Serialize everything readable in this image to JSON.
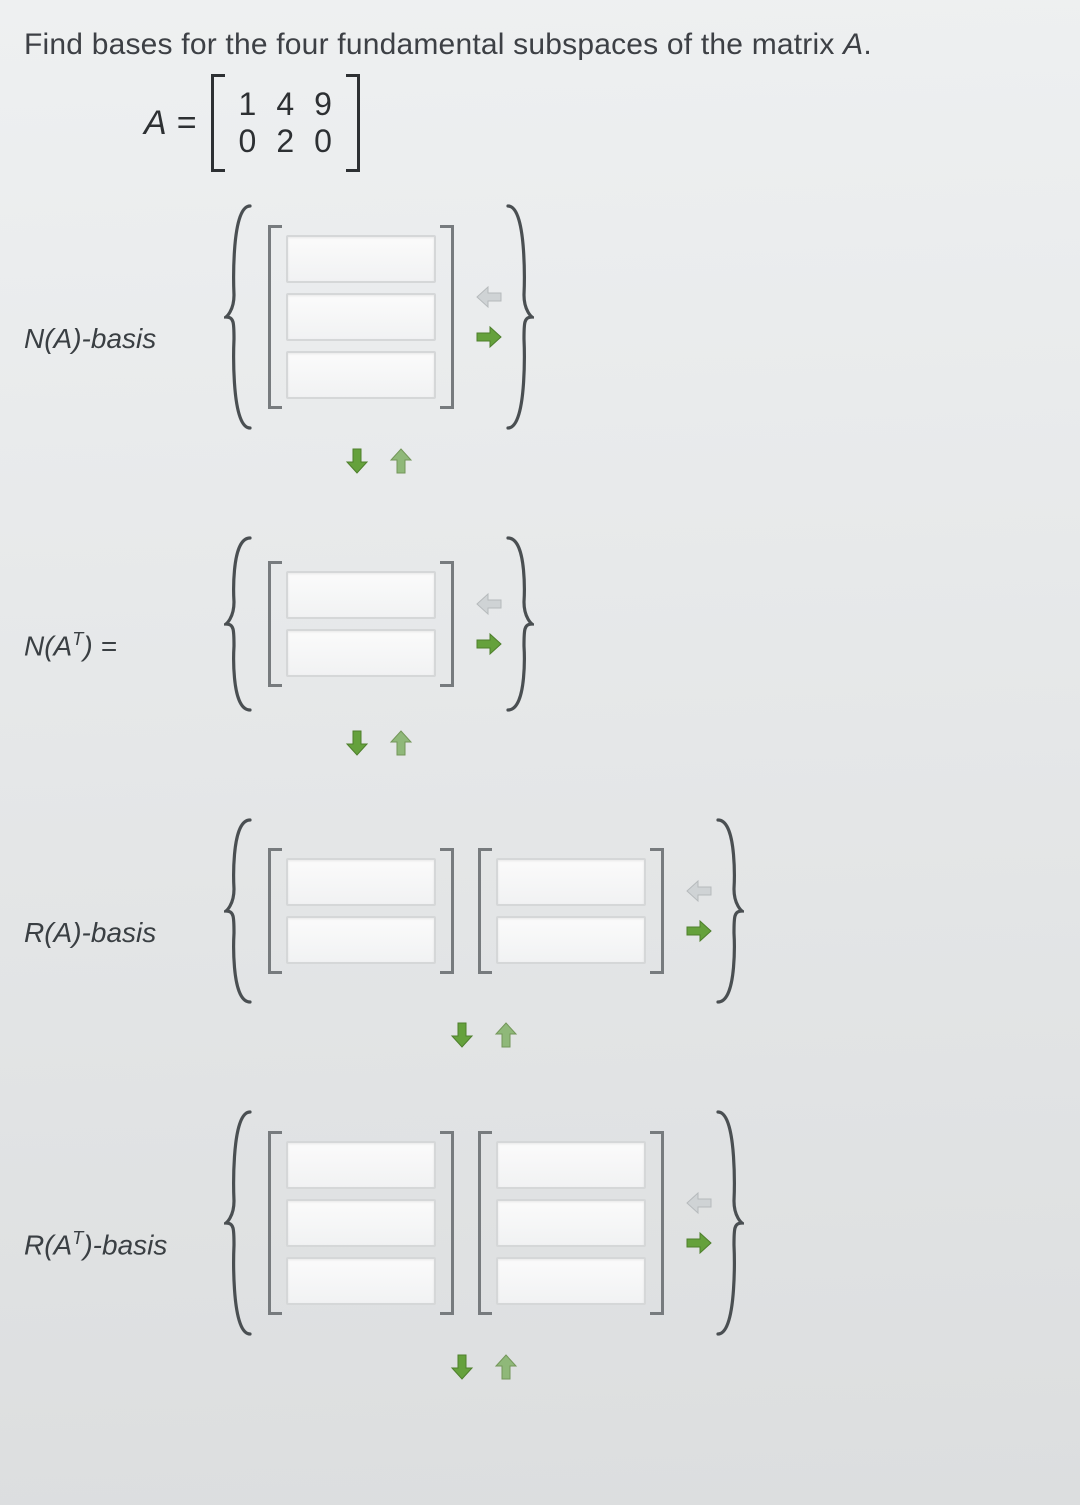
{
  "prompt_prefix": "Find bases for the four fundamental subspaces of the matrix ",
  "prompt_var": "A",
  "prompt_suffix": ".",
  "matrix": {
    "lhs": "A",
    "rows": [
      [
        "1",
        "4",
        "9"
      ],
      [
        "0",
        "2",
        "0"
      ]
    ]
  },
  "colors": {
    "page_bg_top": "#eef0f1",
    "page_bg_bottom": "#dcdedf",
    "text": "#3a3f43",
    "bracket": "#777b7e",
    "arrow_add": "#65a13c",
    "arrow_add_stroke": "#4e7f2c",
    "arrow_remove": "#cfd3d5",
    "arrow_remove_stroke": "#b6babc",
    "input_border": "#d5d7d8"
  },
  "subspaces": [
    {
      "key": "NA",
      "label_html": "N(A)-basis",
      "vector_dim": 3,
      "vectors": [
        [
          "",
          "",
          ""
        ]
      ],
      "brace_height": 230
    },
    {
      "key": "NAT",
      "label_html": "N(A<sup>T</sup>) =",
      "vector_dim": 2,
      "vectors": [
        [
          "",
          ""
        ]
      ],
      "brace_height": 180
    },
    {
      "key": "RA",
      "label_html": "R(A)-basis",
      "vector_dim": 2,
      "vectors": [
        [
          "",
          ""
        ],
        [
          "",
          ""
        ]
      ],
      "brace_height": 190
    },
    {
      "key": "RAT",
      "label_html": "R(A<sup>T</sup>)-basis",
      "vector_dim": 3,
      "vectors": [
        [
          "",
          "",
          ""
        ],
        [
          "",
          "",
          ""
        ]
      ],
      "brace_height": 230
    }
  ],
  "arrows": {
    "col_remove_title": "remove column",
    "col_add_title": "add column",
    "row_remove_title": "remove row",
    "row_add_title": "add row"
  }
}
